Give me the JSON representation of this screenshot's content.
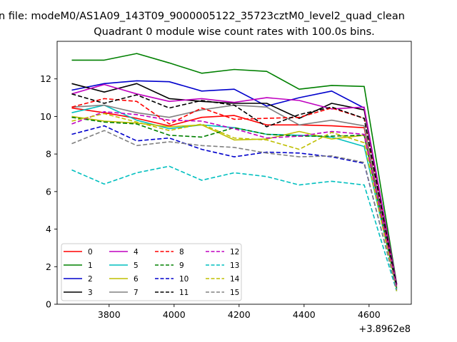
{
  "chart_data": {
    "type": "line",
    "suptitle": "n file: modeM0/AS1A09_143T09_9000005122_35723cztM0_level2_quad_clean",
    "title": "Quadrant 0 module wise count rates with 100.0s bins.",
    "xlabel": "",
    "ylabel": "",
    "x_offset_label": "+3.8962e8",
    "x": [
      3685,
      3785,
      3885,
      3985,
      4085,
      4185,
      4285,
      4385,
      4485,
      4585,
      4685
    ],
    "xlim": [
      3640,
      4730
    ],
    "ylim": [
      0,
      14
    ],
    "xticks": [
      3800,
      4000,
      4200,
      4400,
      4600
    ],
    "xtick_labels": [
      "3800",
      "4000",
      "4200",
      "4400",
      "4600"
    ],
    "yticks": [
      0,
      2,
      4,
      6,
      8,
      10,
      12
    ],
    "ytick_labels": [
      "0",
      "2",
      "4",
      "6",
      "8",
      "10",
      "12"
    ],
    "grid": false,
    "legend_position": "lower-left",
    "series": [
      {
        "name": "0",
        "color": "#ff0000",
        "dash": "solid",
        "values": [
          10.45,
          10.2,
          9.9,
          9.5,
          9.95,
          10.05,
          9.55,
          9.55,
          9.5,
          9.4,
          1.0
        ]
      },
      {
        "name": "1",
        "color": "#008000",
        "dash": "solid",
        "values": [
          13.0,
          13.0,
          13.35,
          12.85,
          12.3,
          12.5,
          12.4,
          11.45,
          11.65,
          11.6,
          1.1
        ]
      },
      {
        "name": "2",
        "color": "#0000cc",
        "dash": "solid",
        "values": [
          11.4,
          11.75,
          11.9,
          11.85,
          11.35,
          11.45,
          10.55,
          11.0,
          11.35,
          10.45,
          1.05
        ]
      },
      {
        "name": "3",
        "color": "#000000",
        "dash": "solid",
        "values": [
          11.75,
          11.3,
          11.75,
          10.95,
          10.8,
          10.7,
          10.7,
          9.9,
          10.7,
          10.35,
          1.05
        ]
      },
      {
        "name": "4",
        "color": "#bf00bf",
        "dash": "solid",
        "values": [
          11.2,
          11.7,
          11.2,
          10.8,
          10.95,
          10.75,
          11.0,
          10.85,
          10.4,
          10.5,
          1.05
        ]
      },
      {
        "name": "5",
        "color": "#00bfbf",
        "dash": "solid",
        "values": [
          10.2,
          10.6,
          9.8,
          9.35,
          9.55,
          9.4,
          9.05,
          9.0,
          8.9,
          8.4,
          0.9
        ]
      },
      {
        "name": "6",
        "color": "#bfbf00",
        "dash": "solid",
        "values": [
          10.0,
          9.75,
          9.65,
          9.45,
          9.55,
          8.75,
          8.8,
          9.2,
          8.8,
          9.0,
          0.85
        ]
      },
      {
        "name": "7",
        "color": "#808080",
        "dash": "solid",
        "values": [
          10.5,
          10.6,
          10.2,
          9.95,
          10.35,
          10.6,
          10.5,
          9.55,
          9.8,
          9.5,
          0.95
        ]
      },
      {
        "name": "8",
        "color": "#ff0000",
        "dash": "dashed",
        "values": [
          10.5,
          10.95,
          10.8,
          9.6,
          10.45,
          9.85,
          9.9,
          9.95,
          10.45,
          9.9,
          0.9
        ]
      },
      {
        "name": "9",
        "color": "#008000",
        "dash": "dashed",
        "values": [
          9.95,
          9.7,
          9.6,
          9.0,
          8.9,
          9.4,
          9.05,
          8.95,
          8.95,
          9.0,
          0.85
        ]
      },
      {
        "name": "10",
        "color": "#0000cc",
        "dash": "dashed",
        "values": [
          9.05,
          9.5,
          8.7,
          8.85,
          8.25,
          7.85,
          8.1,
          8.05,
          7.85,
          7.5,
          0.8
        ]
      },
      {
        "name": "11",
        "color": "#000000",
        "dash": "dashed",
        "values": [
          11.2,
          10.7,
          11.15,
          10.45,
          10.85,
          10.6,
          9.45,
          10.1,
          10.5,
          9.9,
          0.95
        ]
      },
      {
        "name": "12",
        "color": "#bf00bf",
        "dash": "dashed",
        "values": [
          9.6,
          10.25,
          10.1,
          9.8,
          9.75,
          9.35,
          8.85,
          8.95,
          9.2,
          9.05,
          0.85
        ]
      },
      {
        "name": "13",
        "color": "#00bfbf",
        "dash": "dashed",
        "values": [
          7.15,
          6.4,
          7.0,
          7.35,
          6.6,
          7.0,
          6.8,
          6.35,
          6.55,
          6.35,
          0.7
        ]
      },
      {
        "name": "14",
        "color": "#bfbf00",
        "dash": "dashed",
        "values": [
          9.75,
          10.15,
          9.7,
          9.25,
          9.6,
          8.85,
          8.75,
          8.25,
          9.15,
          8.6,
          0.7
        ]
      },
      {
        "name": "15",
        "color": "#808080",
        "dash": "dashed",
        "values": [
          8.55,
          9.25,
          8.45,
          8.65,
          8.45,
          8.35,
          8.05,
          7.85,
          7.9,
          7.55,
          0.75
        ]
      }
    ]
  }
}
